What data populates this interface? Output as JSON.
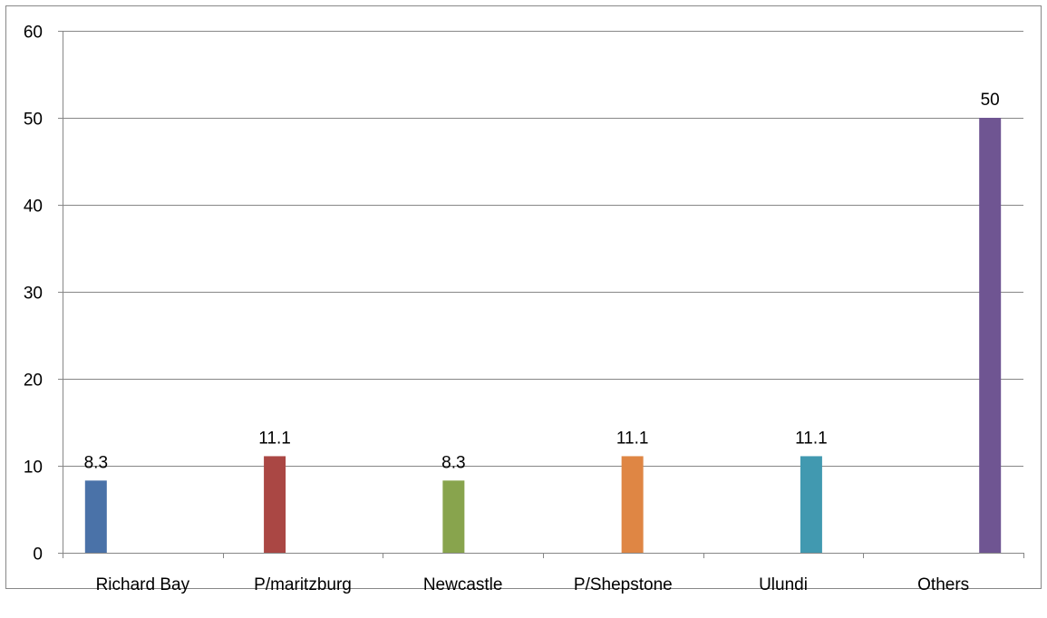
{
  "chart_data": {
    "type": "bar",
    "title": "",
    "xlabel": "",
    "ylabel": "",
    "ylim": [
      0,
      60
    ],
    "yticks": [
      0,
      10,
      20,
      30,
      40,
      50,
      60
    ],
    "grid": true,
    "legend": "none",
    "categories": [
      "Richard Bay",
      "P/maritzburg",
      "Newcastle",
      "P/Shepstone",
      "Ulundi",
      "Others"
    ],
    "series": [
      {
        "color": "#4A72A8",
        "values": [
          8.3,
          null,
          null,
          null,
          null,
          null
        ],
        "labels": [
          "8.3",
          null,
          null,
          null,
          null,
          null
        ]
      },
      {
        "color": "#AA4744",
        "values": [
          null,
          11.1,
          null,
          null,
          null,
          null
        ],
        "labels": [
          null,
          "11.1",
          null,
          null,
          null,
          null
        ]
      },
      {
        "color": "#88A44D",
        "values": [
          null,
          null,
          8.3,
          null,
          null,
          null
        ],
        "labels": [
          null,
          null,
          "8.3",
          null,
          null,
          null
        ]
      },
      {
        "color": "#DF8644",
        "values": [
          null,
          null,
          null,
          11.1,
          null,
          null
        ],
        "labels": [
          null,
          null,
          null,
          "11.1",
          null,
          null
        ]
      },
      {
        "color": "#4199B0",
        "values": [
          null,
          null,
          null,
          null,
          11.1,
          null
        ],
        "labels": [
          null,
          null,
          null,
          null,
          "11.1",
          null
        ]
      },
      {
        "color": "#6F5592",
        "values": [
          null,
          null,
          null,
          null,
          null,
          50
        ],
        "labels": [
          null,
          null,
          null,
          null,
          null,
          "50"
        ]
      }
    ]
  }
}
